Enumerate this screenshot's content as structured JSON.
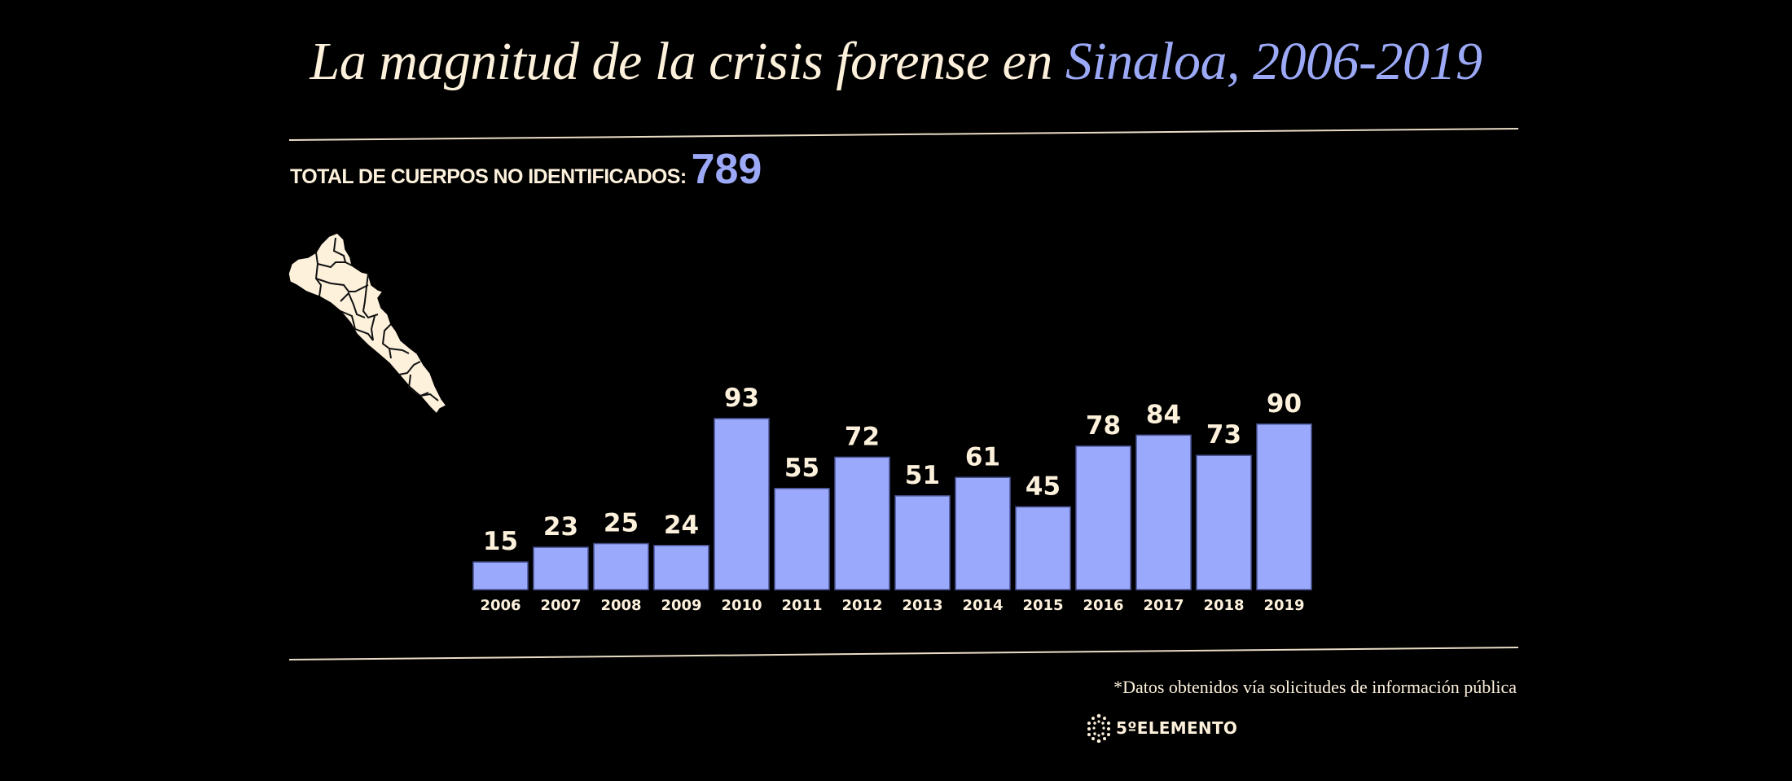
{
  "title": {
    "main": "La magnitud de la crisis forense en ",
    "highlight": "Sinaloa, 2006-2019"
  },
  "total": {
    "label": "TOTAL DE CUERPOS NO IDENTIFICADOS:",
    "value": "789"
  },
  "map": {
    "region": "Sinaloa",
    "icon": "sinaloa-map-icon"
  },
  "footnote": "*Datos obtenidos vía solicitudes de información pública",
  "logo": {
    "icon": "dots-hexagon-logo-icon",
    "text": "5ºELEMENTO"
  },
  "colors": {
    "background": "#000000",
    "text": "#fdf1dc",
    "accent": "#9ba9f7",
    "bar": "#9ba9fd"
  },
  "chart_data": {
    "type": "bar",
    "title": "La magnitud de la crisis forense en Sinaloa, 2006-2019",
    "xlabel": "",
    "ylabel": "",
    "categories": [
      "2006",
      "2007",
      "2008",
      "2009",
      "2010",
      "2011",
      "2012",
      "2013",
      "2014",
      "2015",
      "2016",
      "2017",
      "2018",
      "2019"
    ],
    "values": [
      15,
      23,
      25,
      24,
      93,
      55,
      72,
      51,
      61,
      45,
      78,
      84,
      73,
      90
    ],
    "ylim": [
      0,
      93
    ],
    "grid": false,
    "legend": "none",
    "data_labels": true
  }
}
